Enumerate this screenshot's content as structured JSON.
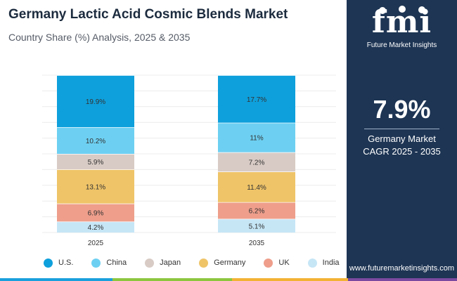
{
  "header": {
    "title": "Germany Lactic Acid Cosmic Blends Market",
    "subtitle": "Country Share (%) Analysis, 2025 & 2035"
  },
  "brand": {
    "logo_text": "fmi",
    "tagline": "Future Market Insights",
    "website": "www.futuremarketinsights.com"
  },
  "kpi": {
    "value": "7.9%",
    "line1": "Germany Market",
    "line2": "CAGR 2025 - 2035"
  },
  "colors": {
    "panel": "#1e3554",
    "bottom_bar": [
      "#1aa0dc",
      "#8cc63f",
      "#f2b233",
      "#7b4aa0",
      "#1e3554"
    ]
  },
  "chart_data": {
    "type": "bar",
    "stacked": true,
    "normalized": true,
    "categories": [
      "2025",
      "2035"
    ],
    "series": [
      {
        "name": "U.S.",
        "color": "#0ea0dc",
        "values": [
          19.9,
          17.7
        ],
        "labels": [
          "19.9%",
          "17.7%"
        ]
      },
      {
        "name": "China",
        "color": "#6dd0f2",
        "values": [
          10.2,
          11.0
        ],
        "labels": [
          "10.2%",
          "11%"
        ]
      },
      {
        "name": "Japan",
        "color": "#d8cbc5",
        "values": [
          5.9,
          7.2
        ],
        "labels": [
          "5.9%",
          "7.2%"
        ]
      },
      {
        "name": "Germany",
        "color": "#efc468",
        "values": [
          13.1,
          11.4
        ],
        "labels": [
          "13.1%",
          "11.4%"
        ]
      },
      {
        "name": "UK",
        "color": "#ee9e8b",
        "values": [
          6.9,
          6.2
        ],
        "labels": [
          "6.9%",
          "6.2%"
        ]
      },
      {
        "name": "India",
        "color": "#c6e6f6",
        "values": [
          4.2,
          5.1
        ],
        "labels": [
          "4.2%",
          "5.1%"
        ]
      }
    ],
    "grid": true,
    "legend_position": "bottom"
  }
}
